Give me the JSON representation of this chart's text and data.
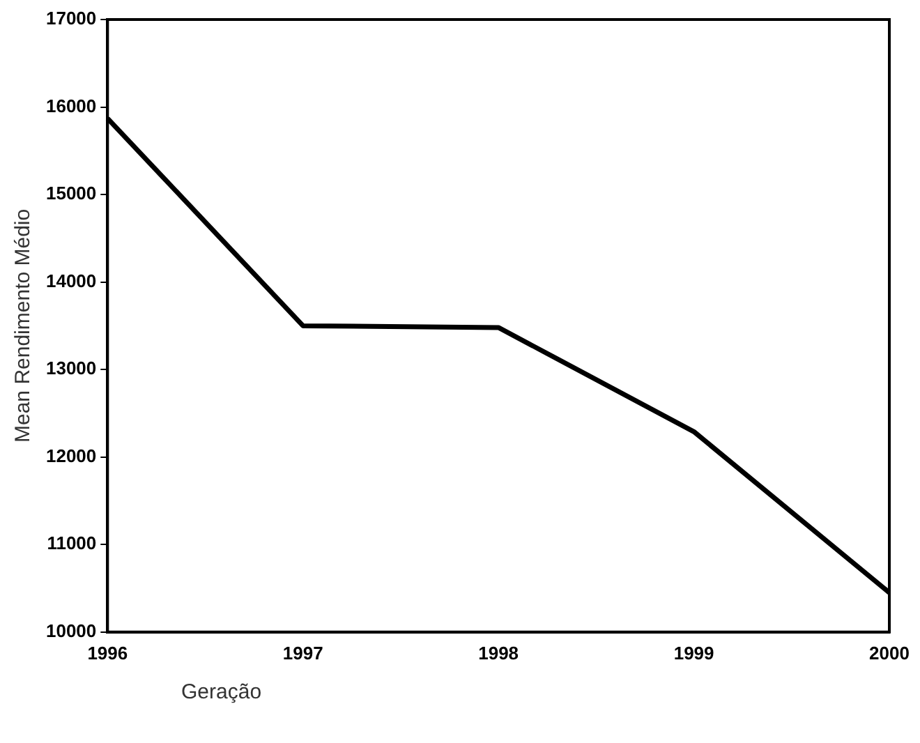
{
  "chart_data": {
    "type": "line",
    "xlabel": "Geração",
    "ylabel": "Mean Rendimento Médio",
    "categories": [
      "1996",
      "1997",
      "1998",
      "1999",
      "2000"
    ],
    "series": [
      {
        "color": "#000000",
        "values": [
          15870,
          13500,
          13480,
          12290,
          10450
        ]
      }
    ],
    "ylim": [
      10000,
      17000
    ],
    "yticks": [
      10000,
      11000,
      12000,
      13000,
      14000,
      15000,
      16000,
      17000
    ],
    "grid": false,
    "legend": false,
    "marker": "none",
    "line_style": "solid"
  }
}
